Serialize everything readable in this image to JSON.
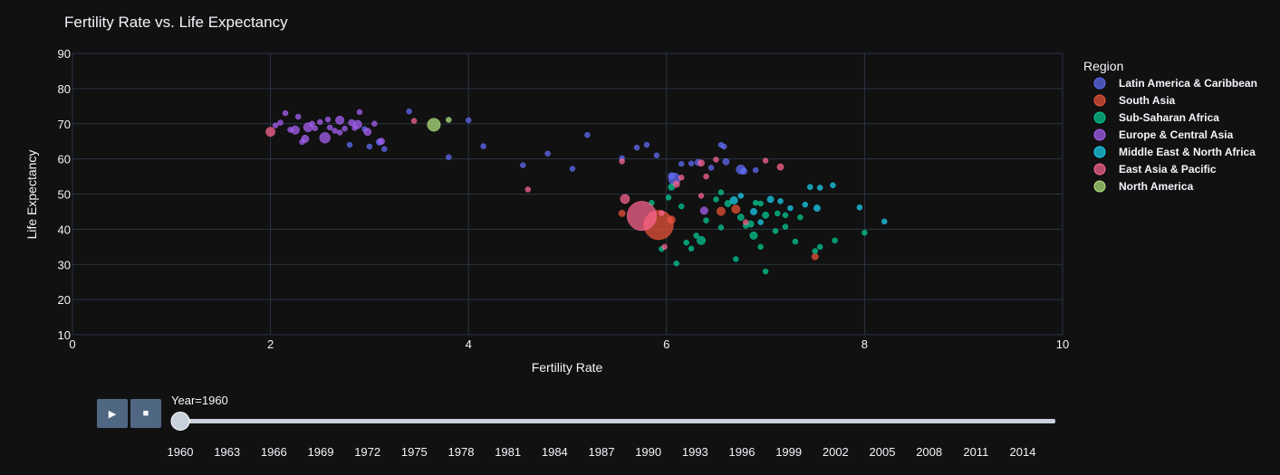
{
  "controls": {
    "play_glyph": "▶",
    "stop_glyph": "■",
    "slider_label": "Year=1960",
    "slider_value": 1960,
    "years": [
      "1960",
      "1963",
      "1966",
      "1969",
      "1972",
      "1975",
      "1978",
      "1981",
      "1984",
      "1987",
      "1990",
      "1993",
      "1996",
      "1999",
      "2002",
      "2005",
      "2008",
      "2011",
      "2014"
    ],
    "track_color": "#c8d0dc"
  },
  "chart_data": {
    "type": "scatter",
    "title": "Fertility Rate vs. Life Expectancy",
    "xlabel": "Fertility Rate",
    "ylabel": "Life Expectancy",
    "xlim": [
      0,
      10
    ],
    "ylim": [
      10,
      90
    ],
    "x_ticks": [
      0,
      2,
      4,
      6,
      8,
      10
    ],
    "y_ticks": [
      10,
      20,
      30,
      40,
      50,
      60,
      70,
      80,
      90
    ],
    "grid": true,
    "legend_title": "Region",
    "legend_position": "top-right",
    "series": [
      {
        "name": "Latin America & Caribbean",
        "color": "#636efa",
        "points": [
          [
            6.08,
            54.3,
            10
          ],
          [
            6.75,
            57.0,
            6
          ],
          [
            6.6,
            59.2,
            3
          ],
          [
            6.78,
            56.5,
            3
          ],
          [
            6.15,
            58.6,
            2
          ],
          [
            6.05,
            55.2,
            3
          ],
          [
            6.25,
            58.7,
            2
          ],
          [
            6.32,
            59.0,
            3
          ],
          [
            6.45,
            57.5,
            2
          ],
          [
            5.55,
            60.2,
            2
          ],
          [
            5.9,
            61.0,
            2
          ],
          [
            4.8,
            61.5,
            2
          ],
          [
            4.15,
            63.6,
            2
          ],
          [
            5.05,
            57.2,
            2
          ],
          [
            5.7,
            63.2,
            2
          ],
          [
            6.58,
            63.5,
            2
          ],
          [
            4.55,
            58.2,
            2
          ],
          [
            3.1,
            64.8,
            3
          ],
          [
            3.15,
            62.8,
            2
          ],
          [
            2.8,
            64.0,
            2
          ],
          [
            3.4,
            73.5,
            2
          ],
          [
            3.0,
            63.5,
            2
          ],
          [
            2.95,
            68.5,
            2
          ],
          [
            5.8,
            64.0,
            2
          ],
          [
            5.2,
            66.8,
            2
          ],
          [
            4.0,
            71.0,
            2
          ],
          [
            3.8,
            60.5,
            2
          ],
          [
            6.55,
            64.0,
            2
          ],
          [
            6.9,
            56.8,
            2
          ]
        ]
      },
      {
        "name": "South Asia",
        "color": "#ef553b",
        "points": [
          [
            5.92,
            41.2,
            60
          ],
          [
            6.7,
            45.7,
            5
          ],
          [
            6.55,
            45.1,
            5
          ],
          [
            6.05,
            42.7,
            4
          ],
          [
            7.5,
            32.2,
            3
          ],
          [
            5.55,
            44.5,
            3
          ]
        ]
      },
      {
        "name": "Sub-Saharan Africa",
        "color": "#00cc96",
        "points": [
          [
            6.35,
            36.8,
            5
          ],
          [
            6.88,
            38.2,
            4
          ],
          [
            7.0,
            44.0,
            3
          ],
          [
            6.85,
            41.5,
            3
          ],
          [
            6.75,
            43.4,
            3
          ],
          [
            6.7,
            31.5,
            2
          ],
          [
            6.95,
            35.0,
            2
          ],
          [
            6.25,
            34.5,
            2
          ],
          [
            6.1,
            30.3,
            2
          ],
          [
            7.2,
            40.7,
            2
          ],
          [
            7.3,
            36.5,
            2
          ],
          [
            6.5,
            48.5,
            2
          ],
          [
            6.05,
            52.0,
            3
          ],
          [
            6.62,
            47.3,
            3
          ],
          [
            6.9,
            47.5,
            2
          ],
          [
            7.1,
            39.5,
            2
          ],
          [
            7.0,
            28.0,
            2
          ],
          [
            7.5,
            33.8,
            2
          ],
          [
            7.55,
            35.0,
            2
          ],
          [
            6.4,
            42.5,
            2
          ],
          [
            6.15,
            46.5,
            2
          ],
          [
            6.02,
            49.0,
            2
          ],
          [
            5.85,
            47.5,
            2
          ],
          [
            6.3,
            38.2,
            2
          ],
          [
            7.7,
            36.8,
            2
          ],
          [
            6.8,
            41.0,
            2
          ],
          [
            6.55,
            40.5,
            2
          ],
          [
            7.35,
            43.4,
            2
          ],
          [
            5.95,
            34.4,
            2
          ],
          [
            6.2,
            36.2,
            2
          ],
          [
            7.12,
            44.5,
            2
          ],
          [
            6.55,
            50.5,
            2
          ],
          [
            8.0,
            39.0,
            2
          ],
          [
            6.95,
            47.3,
            2
          ],
          [
            7.2,
            44.0,
            2
          ]
        ]
      },
      {
        "name": "Europe & Central Asia",
        "color": "#ab63fa",
        "points": [
          [
            2.55,
            66.0,
            8
          ],
          [
            2.38,
            69.0,
            6
          ],
          [
            2.25,
            68.2,
            5
          ],
          [
            2.7,
            71.0,
            5
          ],
          [
            2.88,
            69.8,
            5
          ],
          [
            2.35,
            65.7,
            4
          ],
          [
            2.98,
            67.7,
            4
          ],
          [
            2.82,
            70.3,
            3
          ],
          [
            2.28,
            72.0,
            2
          ],
          [
            2.5,
            70.5,
            2
          ],
          [
            2.42,
            70.0,
            2
          ],
          [
            2.15,
            73.0,
            2
          ],
          [
            2.1,
            70.3,
            2
          ],
          [
            2.6,
            68.9,
            2
          ],
          [
            2.05,
            69.5,
            2
          ],
          [
            2.75,
            68.6,
            2
          ],
          [
            2.65,
            68.0,
            2
          ],
          [
            3.05,
            70.0,
            2
          ],
          [
            2.9,
            73.3,
            2
          ],
          [
            2.2,
            68.3,
            2
          ],
          [
            2.32,
            64.8,
            2
          ],
          [
            3.12,
            65.0,
            3
          ],
          [
            2.45,
            68.7,
            2
          ],
          [
            2.58,
            71.2,
            2
          ],
          [
            2.7,
            67.5,
            2
          ],
          [
            6.38,
            45.3,
            4
          ],
          [
            2.85,
            68.8,
            2
          ]
        ]
      },
      {
        "name": "Middle East & North Africa",
        "color": "#19d3f3",
        "points": [
          [
            6.68,
            48.2,
            4
          ],
          [
            7.52,
            46.0,
            3
          ],
          [
            7.05,
            48.5,
            3
          ],
          [
            6.95,
            42.0,
            2
          ],
          [
            7.25,
            46.0,
            2
          ],
          [
            7.4,
            47.0,
            2
          ],
          [
            7.55,
            51.8,
            2
          ],
          [
            7.68,
            52.5,
            2
          ],
          [
            7.95,
            46.2,
            2
          ],
          [
            8.2,
            42.2,
            2
          ],
          [
            6.88,
            45.0,
            3
          ],
          [
            7.45,
            52.0,
            2
          ],
          [
            6.75,
            49.5,
            2
          ],
          [
            7.15,
            48.0,
            2
          ]
        ]
      },
      {
        "name": "East Asia & Pacific",
        "color": "#ff6692",
        "points": [
          [
            5.75,
            43.8,
            60
          ],
          [
            2.0,
            67.7,
            6
          ],
          [
            5.58,
            48.6,
            6
          ],
          [
            6.35,
            58.8,
            3
          ],
          [
            7.15,
            57.7,
            3
          ],
          [
            6.1,
            52.8,
            3
          ],
          [
            6.15,
            54.7,
            2
          ],
          [
            6.5,
            59.8,
            2
          ],
          [
            4.6,
            51.3,
            2
          ],
          [
            5.55,
            59.3,
            2
          ],
          [
            6.35,
            49.5,
            2
          ],
          [
            3.45,
            70.8,
            2
          ],
          [
            5.98,
            35.0,
            2
          ],
          [
            6.4,
            55.0,
            2
          ],
          [
            7.0,
            59.5,
            2
          ],
          [
            5.95,
            44.6,
            2
          ],
          [
            6.8,
            42.0,
            2
          ]
        ]
      },
      {
        "name": "North America",
        "color": "#b6e880",
        "points": [
          [
            3.65,
            69.7,
            12
          ],
          [
            3.8,
            71.1,
            2
          ]
        ]
      }
    ]
  }
}
